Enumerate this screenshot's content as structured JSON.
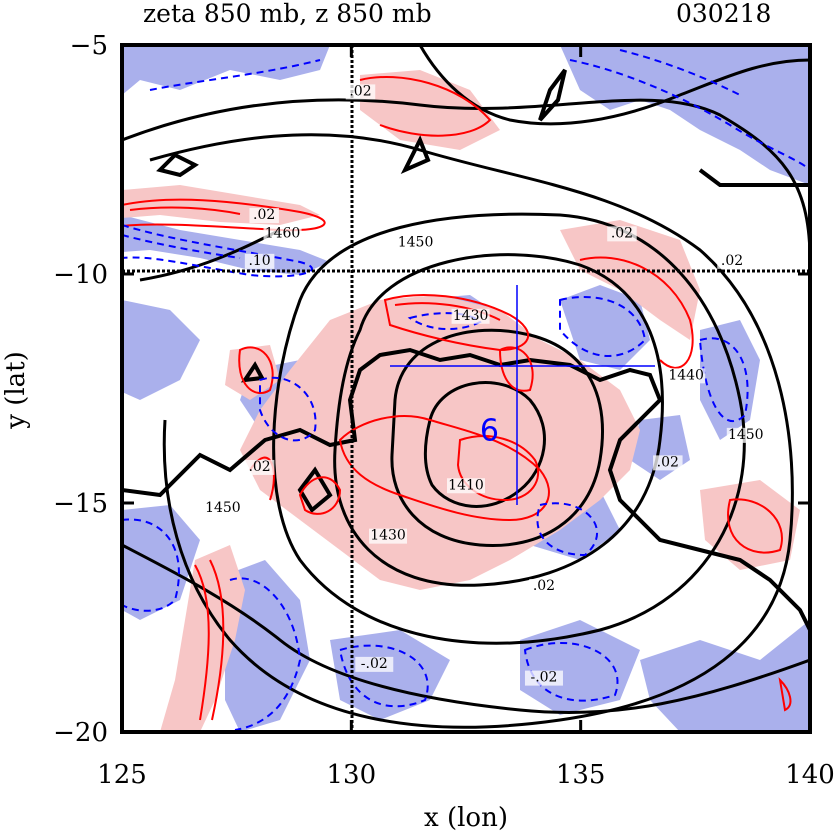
{
  "title_left": "zeta 850 mb, z 850 mb",
  "title_right": "030218",
  "x_axis_label": "x (lon)",
  "y_axis_label": "y (lat)",
  "storm_marker": "6",
  "colors": {
    "positive_fill": "#f7c6c6",
    "negative_fill": "#aab0ec",
    "positive_line": "#ff0000",
    "negative_line": "#0000ff",
    "height_line": "#000000",
    "track_line": "#0000ff"
  },
  "chart_data": {
    "type": "contour-map",
    "xlim": [
      125,
      140
    ],
    "ylim": [
      -20,
      -5
    ],
    "x_ticks": [
      125,
      130,
      135,
      140
    ],
    "x_tick_labels": [
      "125",
      "130",
      "135",
      "140"
    ],
    "y_ticks": [
      -5,
      -10,
      -15,
      -20
    ],
    "y_tick_labels": [
      "−5",
      "−10",
      "−15",
      "−20"
    ],
    "reference_lines": {
      "lon": 130,
      "lat": -10
    },
    "height_contours_mb": [
      1410,
      1430,
      1440,
      1450,
      1460
    ],
    "vorticity_contours": [
      0.02,
      -0.02,
      0.1,
      -0.1
    ],
    "storm_center": {
      "lon": 133.6,
      "lat": -13.4
    },
    "height_labels": [
      {
        "text": "1410",
        "lon": 132.5,
        "lat": -14.7
      },
      {
        "text": "1430",
        "lon": 130.8,
        "lat": -15.8
      },
      {
        "text": "1440",
        "lon": 137.3,
        "lat": -12.3
      },
      {
        "text": "1450",
        "lon": 131.4,
        "lat": -9.4
      },
      {
        "text": "1450",
        "lon": 138.6,
        "lat": -13.6
      },
      {
        "text": "1450",
        "lon": 127.2,
        "lat": -15.2
      },
      {
        "text": "1460",
        "lon": 128.5,
        "lat": -9.2
      },
      {
        "text": "1430",
        "lon": 132.6,
        "lat": -11.0
      }
    ],
    "vorticity_labels": [
      {
        "text": ".02",
        "lon": 128.1,
        "lat": -8.8
      },
      {
        "text": ".02",
        "lon": 130.2,
        "lat": -6.1
      },
      {
        "text": ".02",
        "lon": 128.0,
        "lat": -14.3
      },
      {
        "text": ".02",
        "lon": 134.2,
        "lat": -16.9
      },
      {
        "text": ".02",
        "lon": 136.9,
        "lat": -14.2
      },
      {
        "text": ".02",
        "lon": 138.3,
        "lat": -9.8
      },
      {
        "text": ".02",
        "lon": 135.9,
        "lat": -9.2
      },
      {
        "text": "-.02",
        "lon": 130.5,
        "lat": -18.6
      },
      {
        "text": "-.02",
        "lon": 134.2,
        "lat": -18.9
      },
      {
        "text": ".10",
        "lon": 128.0,
        "lat": -9.8
      }
    ]
  }
}
